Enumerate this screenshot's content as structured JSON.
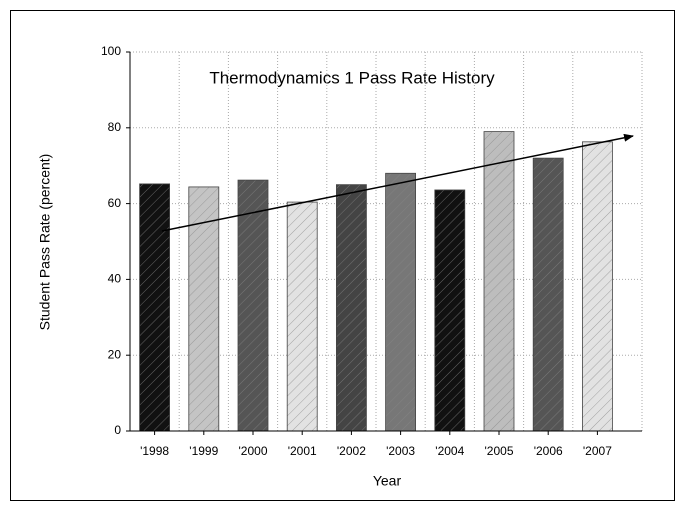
{
  "chart_data": {
    "type": "bar",
    "title": "Thermodynamics 1 Pass Rate History",
    "x_label": "Year",
    "y_label": "Student Pass Rate (percent)",
    "categories": [
      "'1998",
      "'1999",
      "'2000",
      "'2001",
      "'2002",
      "'2003",
      "'2004",
      "'2005",
      "'2006",
      "'2007"
    ],
    "values": [
      65.2,
      64.4,
      66.2,
      60.4,
      65,
      68,
      63.6,
      79,
      72,
      76.3
    ],
    "colors": [
      "#111111",
      "#c4c4c4",
      "#555555",
      "#e2e2e2",
      "#444444",
      "#777777",
      "#111111",
      "#bdbdbd",
      "#555555",
      "#e2e2e2"
    ],
    "ylim": [
      0,
      100
    ],
    "yticks": [
      0,
      20,
      40,
      60,
      80,
      100
    ],
    "grid": true
  }
}
